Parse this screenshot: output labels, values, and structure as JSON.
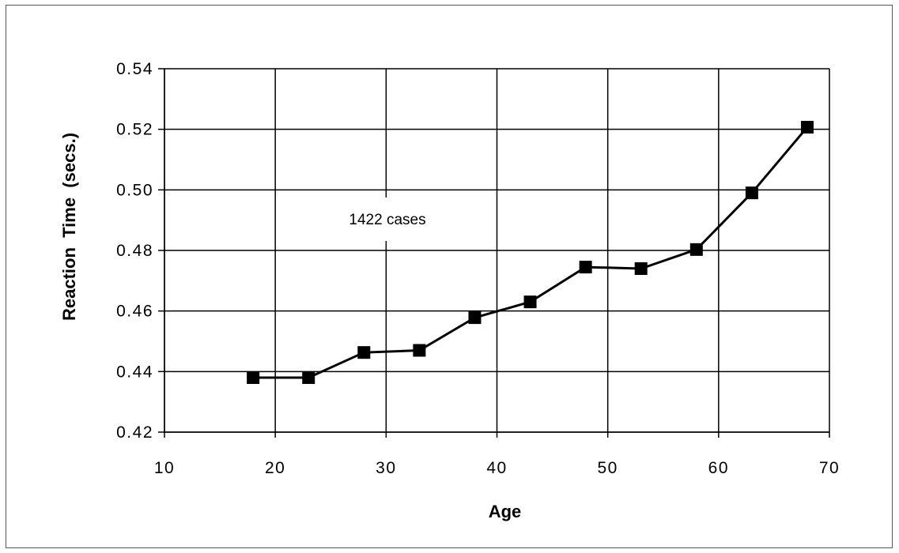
{
  "chart_data": {
    "type": "line",
    "title": "",
    "xlabel": "Age",
    "ylabel": "Reaction  Time  (secs.)",
    "xlim": [
      10,
      70
    ],
    "ylim": [
      0.42,
      0.54
    ],
    "x_ticks": [
      10,
      20,
      30,
      40,
      50,
      60,
      70
    ],
    "y_ticks": [
      0.42,
      0.44,
      0.46,
      0.48,
      0.5,
      0.52,
      0.54
    ],
    "x_tick_labels": [
      "10",
      "20",
      "30",
      "40",
      "50",
      "60",
      "70"
    ],
    "y_tick_labels": [
      "0.42",
      "0.44",
      "0.46",
      "0.48",
      "0.50",
      "0.52",
      "0.54"
    ],
    "grid": true,
    "annotation": "1422 cases",
    "series": [
      {
        "marker": "square",
        "color": "#000000",
        "x": [
          18,
          23,
          28,
          33,
          38,
          43,
          48,
          53,
          58,
          63,
          68
        ],
        "y": [
          0.438,
          0.438,
          0.4463,
          0.447,
          0.4578,
          0.463,
          0.4745,
          0.474,
          0.4803,
          0.499,
          0.5207
        ]
      }
    ]
  }
}
